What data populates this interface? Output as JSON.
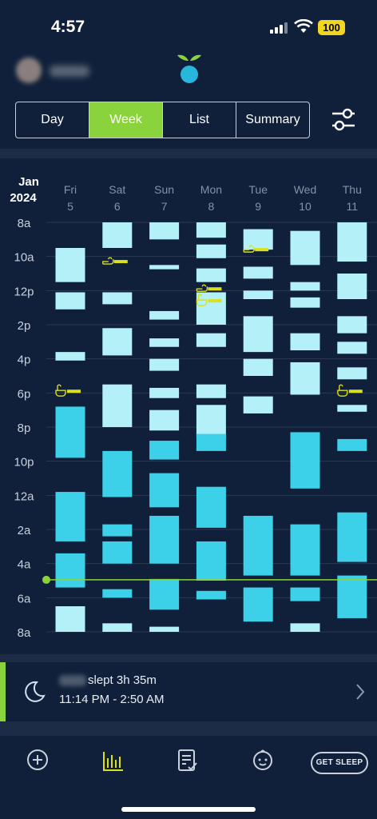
{
  "status_bar": {
    "time": "4:57",
    "battery": "100"
  },
  "tabs": [
    {
      "label": "Day",
      "active": false
    },
    {
      "label": "Week",
      "active": true
    },
    {
      "label": "List",
      "active": false
    },
    {
      "label": "Summary",
      "active": false
    }
  ],
  "chart_data": {
    "type": "timeline",
    "month": "Jan",
    "year": "2024",
    "days": [
      {
        "dow": "Fri",
        "date": "5"
      },
      {
        "dow": "Sat",
        "date": "6"
      },
      {
        "dow": "Sun",
        "date": "7"
      },
      {
        "dow": "Mon",
        "date": "8"
      },
      {
        "dow": "Tue",
        "date": "9"
      },
      {
        "dow": "Wed",
        "date": "10"
      },
      {
        "dow": "Thu",
        "date": "11"
      }
    ],
    "hour_labels": [
      "8a",
      "10a",
      "12p",
      "2p",
      "4p",
      "6p",
      "8p",
      "10p",
      "12a",
      "2a",
      "4a",
      "6a",
      "8a"
    ],
    "blocks": [
      {
        "day": 0,
        "start": 9.5,
        "end": 11.5,
        "kind": "nap"
      },
      {
        "day": 0,
        "start": 12.1,
        "end": 13.1,
        "kind": "nap"
      },
      {
        "day": 0,
        "start": 15.6,
        "end": 16.1,
        "kind": "nap"
      },
      {
        "day": 0,
        "start": 18.8,
        "end": 21.8,
        "kind": "night"
      },
      {
        "day": 0,
        "start": 23.8,
        "end": 26.7,
        "kind": "night"
      },
      {
        "day": 0,
        "start": 27.4,
        "end": 29.4,
        "kind": "night"
      },
      {
        "day": 0,
        "start": 30.5,
        "end": 32.0,
        "kind": "nap"
      },
      {
        "day": 1,
        "start": 8.0,
        "end": 9.5,
        "kind": "nap"
      },
      {
        "day": 1,
        "start": 12.1,
        "end": 12.8,
        "kind": "nap"
      },
      {
        "day": 1,
        "start": 14.2,
        "end": 15.8,
        "kind": "nap"
      },
      {
        "day": 1,
        "start": 17.5,
        "end": 20.0,
        "kind": "nap"
      },
      {
        "day": 1,
        "start": 21.4,
        "end": 24.1,
        "kind": "night"
      },
      {
        "day": 1,
        "start": 25.7,
        "end": 26.4,
        "kind": "night"
      },
      {
        "day": 1,
        "start": 26.7,
        "end": 28.0,
        "kind": "night"
      },
      {
        "day": 1,
        "start": 29.5,
        "end": 30.0,
        "kind": "night"
      },
      {
        "day": 1,
        "start": 31.5,
        "end": 32.0,
        "kind": "nap"
      },
      {
        "day": 2,
        "start": 8.0,
        "end": 9.0,
        "kind": "nap"
      },
      {
        "day": 2,
        "start": 10.5,
        "end": 10.75,
        "kind": "nap"
      },
      {
        "day": 2,
        "start": 13.2,
        "end": 13.7,
        "kind": "nap"
      },
      {
        "day": 2,
        "start": 14.8,
        "end": 15.3,
        "kind": "nap"
      },
      {
        "day": 2,
        "start": 16.0,
        "end": 16.7,
        "kind": "nap"
      },
      {
        "day": 2,
        "start": 17.7,
        "end": 18.3,
        "kind": "nap"
      },
      {
        "day": 2,
        "start": 19.0,
        "end": 20.2,
        "kind": "nap"
      },
      {
        "day": 2,
        "start": 20.8,
        "end": 21.9,
        "kind": "night"
      },
      {
        "day": 2,
        "start": 22.7,
        "end": 24.7,
        "kind": "night"
      },
      {
        "day": 2,
        "start": 25.2,
        "end": 28.0,
        "kind": "night"
      },
      {
        "day": 2,
        "start": 28.9,
        "end": 30.7,
        "kind": "night"
      },
      {
        "day": 2,
        "start": 31.7,
        "end": 32.0,
        "kind": "nap"
      },
      {
        "day": 3,
        "start": 8.0,
        "end": 8.9,
        "kind": "nap"
      },
      {
        "day": 3,
        "start": 9.3,
        "end": 10.1,
        "kind": "nap"
      },
      {
        "day": 3,
        "start": 10.7,
        "end": 11.5,
        "kind": "nap"
      },
      {
        "day": 3,
        "start": 12.1,
        "end": 14.0,
        "kind": "nap"
      },
      {
        "day": 3,
        "start": 14.5,
        "end": 15.3,
        "kind": "nap"
      },
      {
        "day": 3,
        "start": 17.5,
        "end": 18.3,
        "kind": "nap"
      },
      {
        "day": 3,
        "start": 18.7,
        "end": 20.6,
        "kind": "nap"
      },
      {
        "day": 3,
        "start": 20.4,
        "end": 21.4,
        "kind": "night"
      },
      {
        "day": 3,
        "start": 23.5,
        "end": 25.9,
        "kind": "night"
      },
      {
        "day": 3,
        "start": 26.7,
        "end": 29.0,
        "kind": "night"
      },
      {
        "day": 3,
        "start": 29.6,
        "end": 30.1,
        "kind": "night"
      },
      {
        "day": 4,
        "start": 8.4,
        "end": 9.6,
        "kind": "nap"
      },
      {
        "day": 4,
        "start": 10.6,
        "end": 11.3,
        "kind": "nap"
      },
      {
        "day": 4,
        "start": 12.0,
        "end": 12.5,
        "kind": "nap"
      },
      {
        "day": 4,
        "start": 13.5,
        "end": 15.6,
        "kind": "nap"
      },
      {
        "day": 4,
        "start": 16.0,
        "end": 17.0,
        "kind": "nap"
      },
      {
        "day": 4,
        "start": 18.2,
        "end": 19.2,
        "kind": "nap"
      },
      {
        "day": 4,
        "start": 25.2,
        "end": 28.7,
        "kind": "night"
      },
      {
        "day": 4,
        "start": 29.4,
        "end": 31.4,
        "kind": "night"
      },
      {
        "day": 5,
        "start": 8.5,
        "end": 10.5,
        "kind": "nap"
      },
      {
        "day": 5,
        "start": 11.5,
        "end": 12.0,
        "kind": "nap"
      },
      {
        "day": 5,
        "start": 12.4,
        "end": 13.0,
        "kind": "nap"
      },
      {
        "day": 5,
        "start": 14.5,
        "end": 15.5,
        "kind": "nap"
      },
      {
        "day": 5,
        "start": 16.2,
        "end": 18.1,
        "kind": "nap"
      },
      {
        "day": 5,
        "start": 20.3,
        "end": 23.6,
        "kind": "night"
      },
      {
        "day": 5,
        "start": 25.7,
        "end": 28.7,
        "kind": "night"
      },
      {
        "day": 5,
        "start": 29.4,
        "end": 30.2,
        "kind": "night"
      },
      {
        "day": 5,
        "start": 31.5,
        "end": 32.0,
        "kind": "nap"
      },
      {
        "day": 6,
        "start": 8.0,
        "end": 10.3,
        "kind": "nap"
      },
      {
        "day": 6,
        "start": 11.0,
        "end": 12.5,
        "kind": "nap"
      },
      {
        "day": 6,
        "start": 13.5,
        "end": 14.5,
        "kind": "nap"
      },
      {
        "day": 6,
        "start": 15.0,
        "end": 15.7,
        "kind": "nap"
      },
      {
        "day": 6,
        "start": 16.5,
        "end": 17.2,
        "kind": "nap"
      },
      {
        "day": 6,
        "start": 18.7,
        "end": 19.1,
        "kind": "nap"
      },
      {
        "day": 6,
        "start": 20.7,
        "end": 21.4,
        "kind": "night"
      },
      {
        "day": 6,
        "start": 25.0,
        "end": 27.9,
        "kind": "night"
      },
      {
        "day": 6,
        "start": 28.7,
        "end": 31.2,
        "kind": "night"
      }
    ],
    "bath_events": [
      {
        "day": 0,
        "time": 17.9
      },
      {
        "day": 3,
        "time": 12.6
      },
      {
        "day": 6,
        "time": 17.9
      }
    ],
    "tub_events": [
      {
        "day": 1,
        "time": 10.3
      },
      {
        "day": 3,
        "time": 11.9
      },
      {
        "day": 4,
        "time": 9.6
      }
    ],
    "current_time": 28.95,
    "colors": {
      "nap": "#b4f0f8",
      "night": "#3cd1e8",
      "bath": "#d8e11c",
      "now": "#8bd33c",
      "grid": "#2c3a50"
    }
  },
  "sleep_card": {
    "title": "slept 3h 35m",
    "range": "11:14 PM - 2:50 AM"
  },
  "bottom_nav": {
    "get_sleep": "GET SLEEP"
  }
}
